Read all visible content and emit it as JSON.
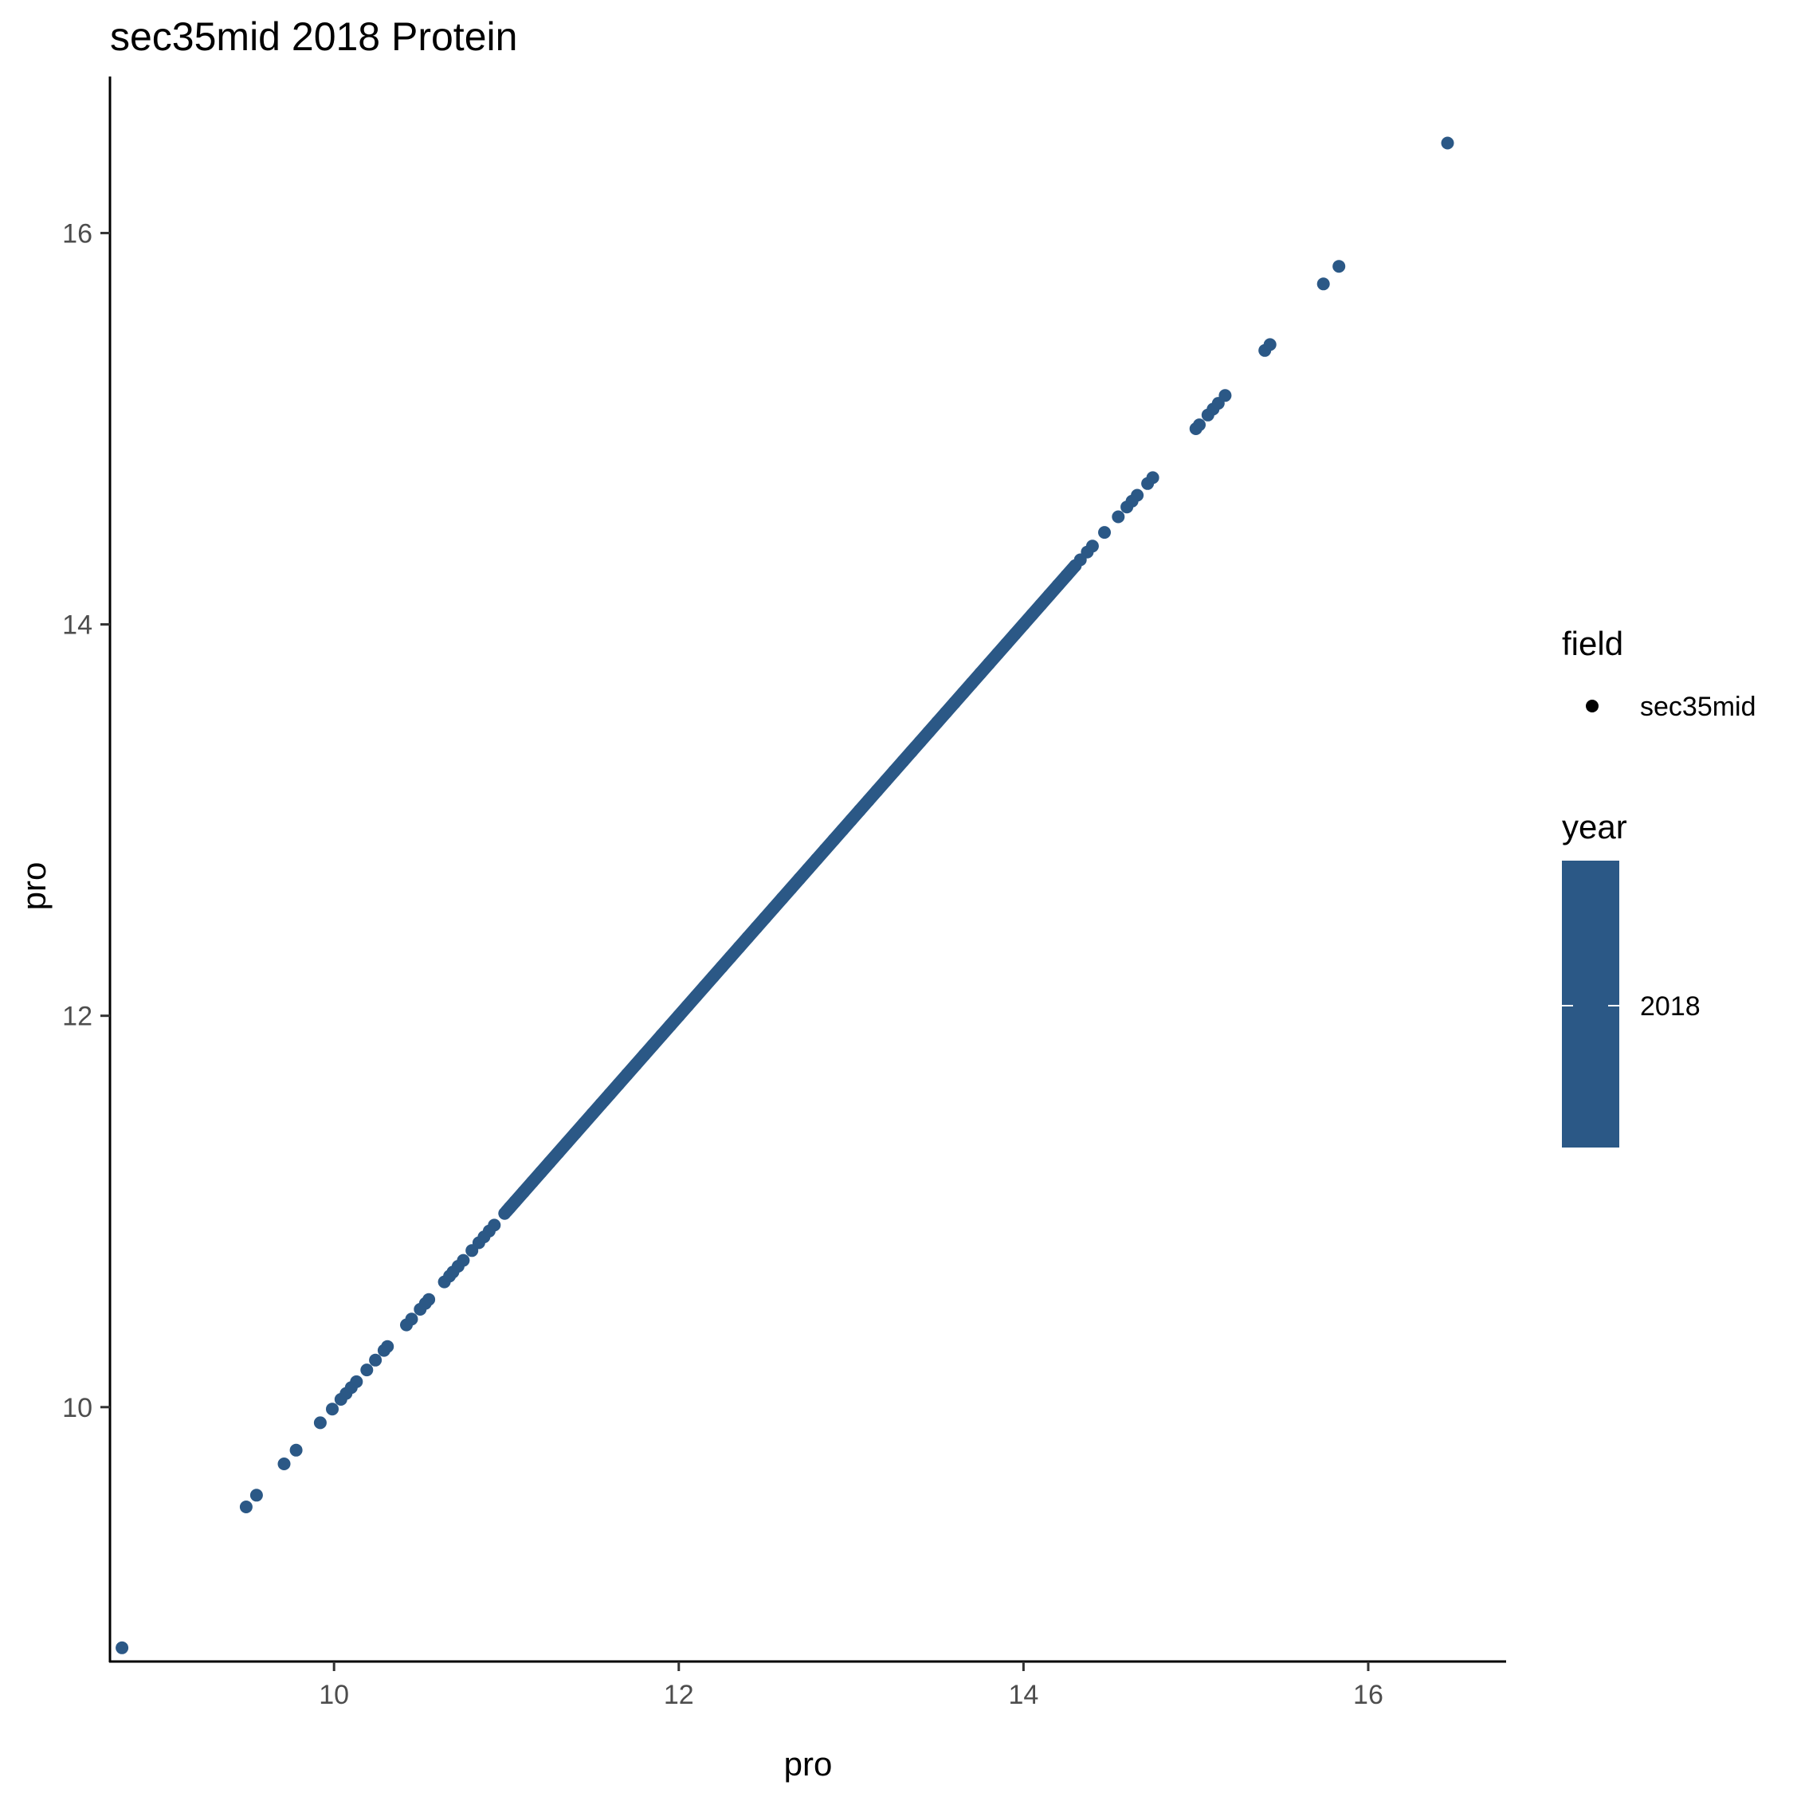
{
  "chart_data": {
    "type": "scatter",
    "title": "sec35mid 2018 Protein",
    "xlabel": "pro",
    "ylabel": "pro",
    "xlim": [
      8.7,
      16.8
    ],
    "ylim": [
      8.7,
      16.8
    ],
    "xticks": [
      10,
      12,
      14,
      16
    ],
    "yticks": [
      10,
      12,
      14,
      16
    ],
    "x_tick_labels": [
      "10",
      "12",
      "14",
      "16"
    ],
    "y_tick_labels": [
      "10",
      "12",
      "14",
      "16"
    ],
    "grid": false,
    "legend_position": "right",
    "point_color": "#2b5886",
    "series": [
      {
        "name": "sec35mid",
        "x": [
          8.77,
          9.49,
          9.55,
          9.71,
          9.78,
          9.92,
          9.99,
          10.04,
          10.07,
          10.1,
          10.13,
          10.19,
          10.24,
          10.29,
          10.31,
          10.42,
          10.45,
          10.5,
          10.53,
          10.55,
          10.64,
          10.67,
          10.69,
          10.72,
          10.75,
          10.8,
          10.84,
          10.87,
          10.9,
          10.93,
          10.99,
          11.02,
          11.05,
          11.1,
          11.15,
          11.2,
          11.25,
          11.3,
          11.35,
          11.4,
          11.45,
          11.5,
          11.55,
          11.6,
          11.65,
          11.7,
          11.75,
          11.8,
          11.85,
          11.9,
          11.95,
          12.0,
          12.05,
          12.1,
          12.15,
          12.2,
          12.25,
          12.3,
          12.35,
          12.4,
          12.45,
          12.5,
          12.55,
          12.6,
          12.65,
          12.7,
          12.75,
          12.8,
          12.85,
          12.9,
          12.95,
          13.0,
          13.05,
          13.1,
          13.15,
          13.2,
          13.25,
          13.3,
          13.35,
          13.4,
          13.45,
          13.5,
          13.55,
          13.6,
          13.65,
          13.7,
          13.75,
          13.8,
          13.85,
          13.9,
          13.95,
          14.0,
          14.05,
          14.1,
          14.15,
          14.2,
          14.25,
          14.3,
          14.33,
          14.37,
          14.4,
          14.47,
          14.55,
          14.6,
          14.63,
          14.66,
          14.72,
          14.75,
          15.0,
          15.02,
          15.07,
          15.1,
          15.13,
          15.17,
          15.4,
          15.43,
          15.74,
          15.83,
          16.46
        ],
        "y": [
          8.77,
          9.49,
          9.55,
          9.71,
          9.78,
          9.92,
          9.99,
          10.04,
          10.07,
          10.1,
          10.13,
          10.19,
          10.24,
          10.29,
          10.31,
          10.42,
          10.45,
          10.5,
          10.53,
          10.55,
          10.64,
          10.67,
          10.69,
          10.72,
          10.75,
          10.8,
          10.84,
          10.87,
          10.9,
          10.93,
          10.99,
          11.02,
          11.05,
          11.1,
          11.15,
          11.2,
          11.25,
          11.3,
          11.35,
          11.4,
          11.45,
          11.5,
          11.55,
          11.6,
          11.65,
          11.7,
          11.75,
          11.8,
          11.85,
          11.9,
          11.95,
          12.0,
          12.05,
          12.1,
          12.15,
          12.2,
          12.25,
          12.3,
          12.35,
          12.4,
          12.45,
          12.5,
          12.55,
          12.6,
          12.65,
          12.7,
          12.75,
          12.8,
          12.85,
          12.9,
          12.95,
          13.0,
          13.05,
          13.1,
          13.15,
          13.2,
          13.25,
          13.3,
          13.35,
          13.4,
          13.45,
          13.5,
          13.55,
          13.6,
          13.65,
          13.7,
          13.75,
          13.8,
          13.85,
          13.9,
          13.95,
          14.0,
          14.05,
          14.1,
          14.15,
          14.2,
          14.25,
          14.3,
          14.33,
          14.37,
          14.4,
          14.47,
          14.55,
          14.6,
          14.63,
          14.66,
          14.72,
          14.75,
          15.0,
          15.02,
          15.07,
          15.1,
          15.13,
          15.17,
          15.4,
          15.43,
          15.74,
          15.83,
          16.46
        ]
      }
    ],
    "legend": {
      "field_title": "field",
      "field_label": "sec35mid",
      "year_title": "year",
      "year_label": "2018"
    }
  }
}
